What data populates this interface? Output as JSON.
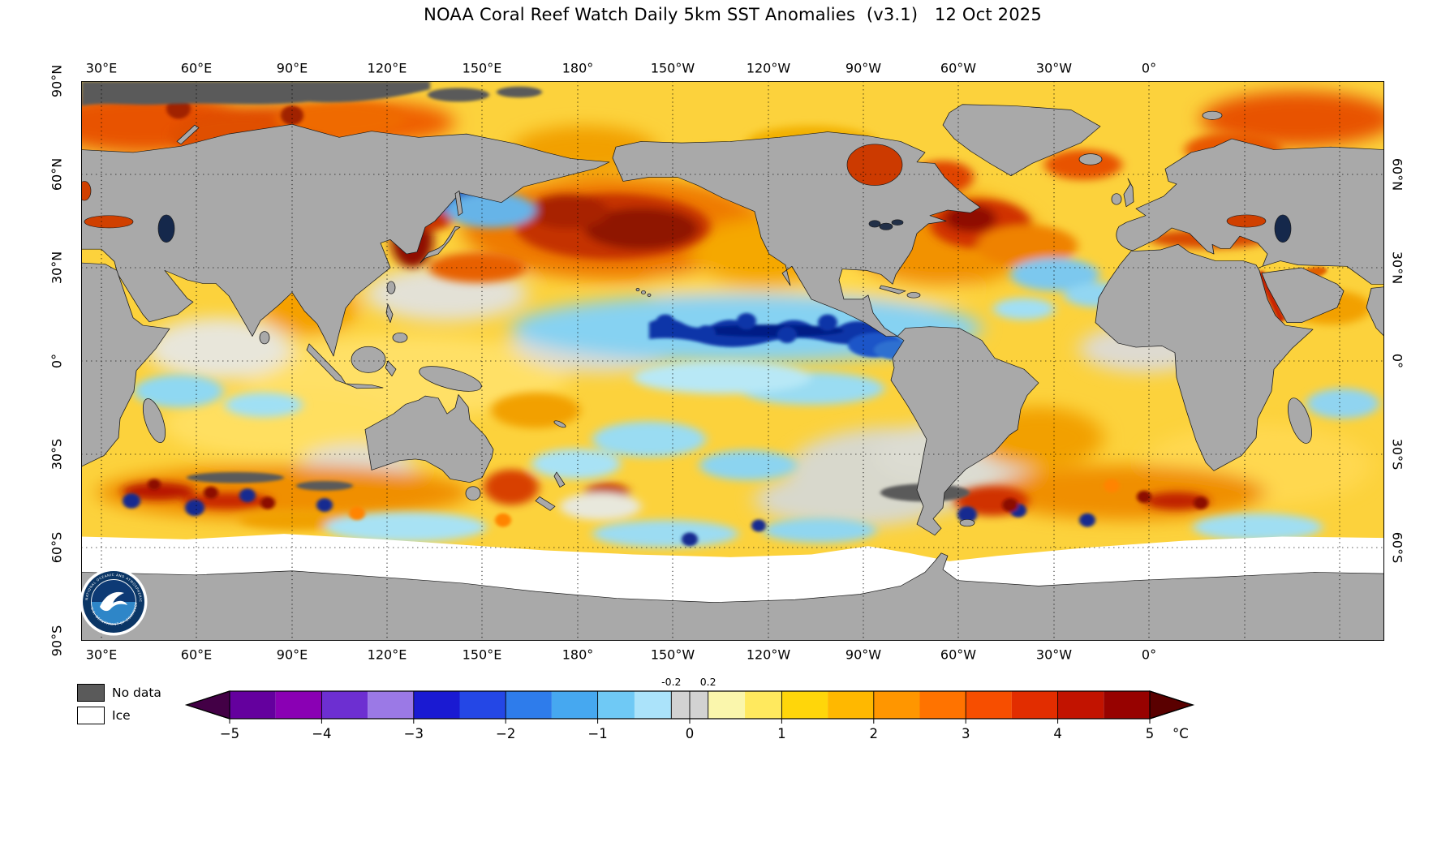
{
  "title": "NOAA Coral Reef Watch Daily 5km SST Anomalies  (v3.1)   12 Oct 2025",
  "map": {
    "lon_ticks": [
      "30°E",
      "60°E",
      "90°E",
      "120°E",
      "150°E",
      "180°",
      "150°W",
      "120°W",
      "90°W",
      "60°W",
      "30°W",
      "0°"
    ],
    "lat_ticks": [
      "90°N",
      "60°N",
      "30°N",
      "0°",
      "30°S",
      "60°S",
      "90°S"
    ],
    "lat_ticks_right": [
      "60°N",
      "30°N",
      "0°",
      "30°S",
      "60°S"
    ]
  },
  "legend": {
    "no_data_label": "No data",
    "ice_label": "Ice"
  },
  "colorbar": {
    "unit": "°C",
    "ticks": [
      "−5",
      "−4",
      "−3",
      "−2",
      "−1",
      "0",
      "1",
      "2",
      "3",
      "4",
      "5"
    ],
    "tick_values": [
      -5,
      -4,
      -3,
      -2,
      -1,
      0,
      1,
      2,
      3,
      4,
      5
    ],
    "sub_labels": [
      {
        "value": -0.2,
        "label": "-0.2"
      },
      {
        "value": 0.2,
        "label": "0.2"
      }
    ],
    "range": [
      -5,
      5
    ],
    "arrow_left_color": "#430046",
    "arrow_right_color": "#5a0000",
    "segments": [
      {
        "from": -5.0,
        "to": -4.5,
        "color": "#64009e"
      },
      {
        "from": -4.5,
        "to": -4.0,
        "color": "#8a00b4"
      },
      {
        "from": -4.0,
        "to": -3.5,
        "color": "#6d2fd1"
      },
      {
        "from": -3.5,
        "to": -3.0,
        "color": "#9b79e6"
      },
      {
        "from": -3.0,
        "to": -2.5,
        "color": "#1a1ad2"
      },
      {
        "from": -2.5,
        "to": -2.0,
        "color": "#2447e6"
      },
      {
        "from": -2.0,
        "to": -1.5,
        "color": "#2e7ceb"
      },
      {
        "from": -1.5,
        "to": -1.0,
        "color": "#46a8f0"
      },
      {
        "from": -1.0,
        "to": -0.6,
        "color": "#6fc9f5"
      },
      {
        "from": -0.6,
        "to": -0.2,
        "color": "#abe3fa"
      },
      {
        "from": -0.2,
        "to": 0.2,
        "color": "#d2d2d2"
      },
      {
        "from": 0.2,
        "to": 0.6,
        "color": "#faf6ac"
      },
      {
        "from": 0.6,
        "to": 1.0,
        "color": "#ffe95e"
      },
      {
        "from": 1.0,
        "to": 1.5,
        "color": "#ffd60a"
      },
      {
        "from": 1.5,
        "to": 2.0,
        "color": "#ffb800"
      },
      {
        "from": 2.0,
        "to": 2.5,
        "color": "#ff9600"
      },
      {
        "from": 2.5,
        "to": 3.0,
        "color": "#ff7300"
      },
      {
        "from": 3.0,
        "to": 3.5,
        "color": "#f74e00"
      },
      {
        "from": 3.5,
        "to": 4.0,
        "color": "#e22d00"
      },
      {
        "from": 4.0,
        "to": 4.5,
        "color": "#c21300"
      },
      {
        "from": 4.5,
        "to": 5.0,
        "color": "#970200"
      }
    ]
  },
  "logo": {
    "ring_text_top": "NATIONAL OCEANIC AND ATMOSPHERIC ADMINISTRATION",
    "ring_text_bottom": "U.S. DEPARTMENT OF COMMERCE"
  },
  "chart_data": {
    "type": "heatmap",
    "title": "NOAA Coral Reef Watch Daily 5km SST Anomalies (v3.1)",
    "date": "12 Oct 2025",
    "version": "v3.1",
    "variable": "Sea Surface Temperature Anomaly",
    "units": "°C",
    "colorbar_range": [
      -5,
      5
    ],
    "colorbar_ticks": [
      -5,
      -4,
      -3,
      -2,
      -1,
      0,
      1,
      2,
      3,
      4,
      5
    ],
    "neutral_gray_band": [
      -0.2,
      0.2
    ],
    "x_axis": {
      "label_type": "longitude",
      "ticks": [
        "30°E",
        "60°E",
        "90°E",
        "120°E",
        "150°E",
        "180°",
        "150°W",
        "120°W",
        "90°W",
        "60°W",
        "30°W",
        "0°"
      ]
    },
    "y_axis": {
      "label_type": "latitude",
      "ticks": [
        "90°N",
        "60°N",
        "30°N",
        "0°",
        "30°S",
        "60°S",
        "90°S"
      ]
    },
    "legend_entries": [
      "No data",
      "Ice"
    ]
  }
}
